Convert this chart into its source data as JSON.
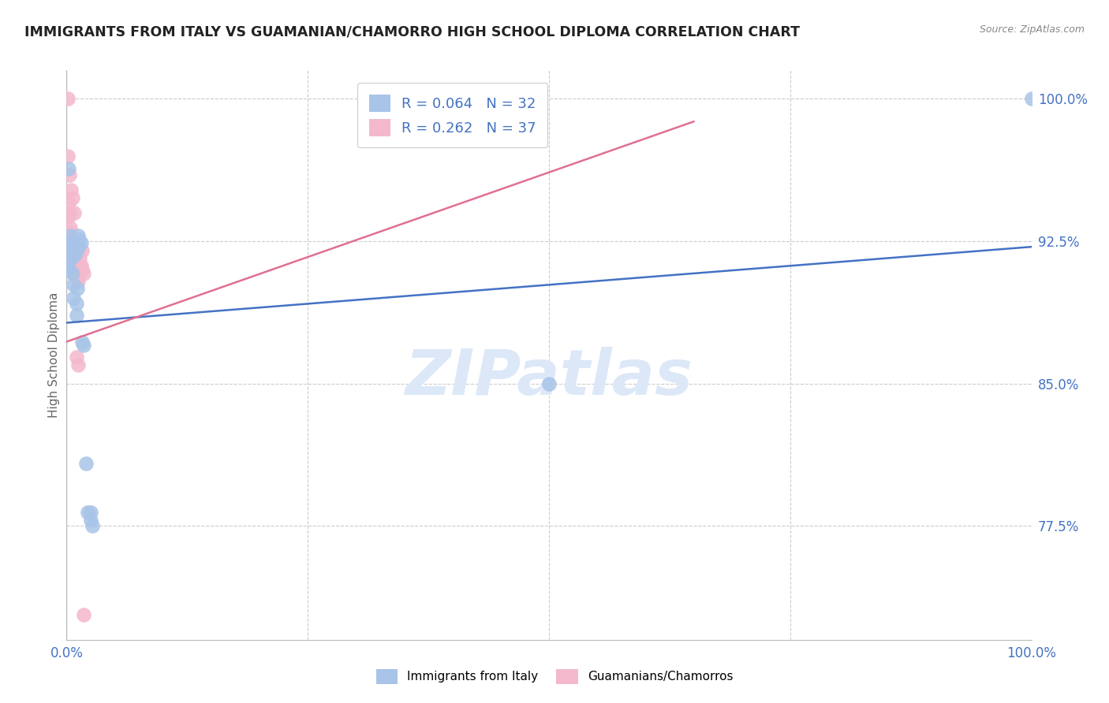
{
  "title": "IMMIGRANTS FROM ITALY VS GUAMANIAN/CHAMORRO HIGH SCHOOL DIPLOMA CORRELATION CHART",
  "source": "Source: ZipAtlas.com",
  "ylabel": "High School Diploma",
  "legend_label1": "Immigrants from Italy",
  "legend_label2": "Guamanians/Chamorros",
  "r1": "0.064",
  "n1": "32",
  "r2": "0.262",
  "n2": "37",
  "blue_color": "#a8c4e8",
  "pink_color": "#f4b8cc",
  "blue_line_color": "#4472c4",
  "pink_line_color": "#e07090",
  "axis_label_color": "#4472c4",
  "watermark_color": "#dce8f8",
  "italy_x": [
    0.001,
    0.002,
    0.002,
    0.003,
    0.003,
    0.004,
    0.004,
    0.005,
    0.005,
    0.006,
    0.006,
    0.007,
    0.007,
    0.008,
    0.009,
    0.01,
    0.01,
    0.01,
    0.011,
    0.012,
    0.012,
    0.013,
    0.015,
    0.016,
    0.018,
    0.02,
    0.022,
    0.025,
    0.025,
    0.027,
    0.5,
    1.0
  ],
  "italy_y": [
    0.912,
    0.963,
    0.91,
    0.928,
    0.92,
    0.924,
    0.916,
    0.92,
    0.916,
    0.924,
    0.908,
    0.895,
    0.902,
    0.922,
    0.918,
    0.892,
    0.886,
    0.92,
    0.9,
    0.928,
    0.922,
    0.926,
    0.924,
    0.872,
    0.87,
    0.808,
    0.782,
    0.782,
    0.778,
    0.775,
    0.85,
    1.0
  ],
  "guam_x": [
    0.001,
    0.001,
    0.002,
    0.002,
    0.003,
    0.003,
    0.004,
    0.004,
    0.004,
    0.005,
    0.005,
    0.006,
    0.006,
    0.007,
    0.007,
    0.008,
    0.008,
    0.009,
    0.009,
    0.01,
    0.01,
    0.011,
    0.012,
    0.012,
    0.013,
    0.014,
    0.015,
    0.016,
    0.016,
    0.018,
    0.003,
    0.005,
    0.006,
    0.008,
    0.01,
    0.012,
    0.018
  ],
  "guam_y": [
    1.0,
    0.97,
    0.945,
    0.938,
    0.94,
    0.93,
    0.932,
    0.928,
    0.924,
    0.925,
    0.92,
    0.92,
    0.916,
    0.918,
    0.912,
    0.922,
    0.912,
    0.914,
    0.908,
    0.912,
    0.908,
    0.906,
    0.907,
    0.904,
    0.92,
    0.916,
    0.912,
    0.92,
    0.91,
    0.908,
    0.96,
    0.952,
    0.948,
    0.94,
    0.864,
    0.86,
    0.728
  ],
  "blue_trend_x": [
    0.0,
    1.0
  ],
  "blue_trend_y": [
    0.882,
    0.922
  ],
  "pink_trend_x": [
    0.0,
    0.65
  ],
  "pink_trend_y": [
    0.872,
    0.988
  ],
  "xlim": [
    0.0,
    1.0
  ],
  "ylim": [
    0.715,
    1.015
  ],
  "ytick_vals": [
    0.775,
    0.85,
    0.925,
    1.0
  ],
  "ytick_labels": [
    "77.5%",
    "85.0%",
    "92.5%",
    "100.0%"
  ],
  "xtick_vals": [
    0.0,
    1.0
  ],
  "xtick_labels": [
    "0.0%",
    "100.0%"
  ],
  "vgrid_vals": [
    0.25,
    0.5,
    0.75,
    1.0
  ],
  "marker_size": 180
}
